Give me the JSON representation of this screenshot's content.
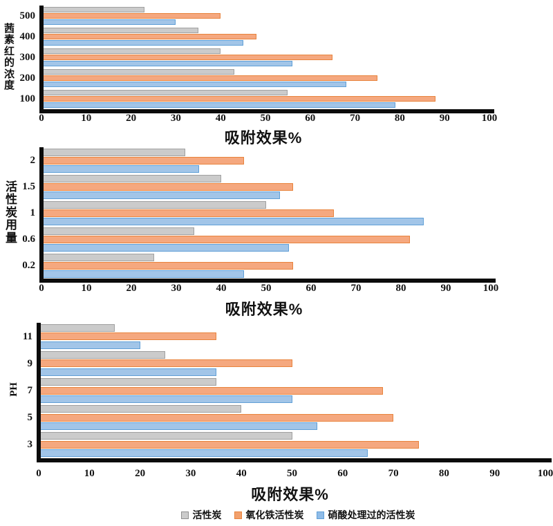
{
  "figure": {
    "background": "#ffffff",
    "axis_color": "#0b0b0b"
  },
  "chart_data": [
    {
      "type": "bar",
      "orientation": "horizontal",
      "y_axis_title": "茜素红的浓度",
      "xlabel": "吸附效果%",
      "xlim": [
        0,
        100
      ],
      "grid": false,
      "x_ticks": [
        "0",
        "10",
        "20",
        "30",
        "40",
        "50",
        "60",
        "70",
        "80",
        "90",
        "100"
      ],
      "categories": [
        "500",
        "400",
        "300",
        "200",
        "100"
      ],
      "series": [
        {
          "name": "活性炭",
          "fill": "#cbcbcb",
          "border": "#a0a0a0",
          "values": [
            23,
            35,
            40,
            43,
            55
          ]
        },
        {
          "name": "氧化铁活性炭",
          "fill": "#f5a87f",
          "border": "#e8833c",
          "values": [
            40,
            48,
            65,
            75,
            88
          ]
        },
        {
          "name": "硝酸处理过的活性炭",
          "fill": "#a2c5e8",
          "border": "#609fd6",
          "values": [
            30,
            45,
            56,
            68,
            79
          ]
        }
      ]
    },
    {
      "type": "bar",
      "orientation": "horizontal",
      "y_axis_title": "活性炭用量",
      "xlabel": "吸附效果%",
      "xlim": [
        0,
        100
      ],
      "grid": false,
      "x_ticks": [
        "0",
        "10",
        "20",
        "30",
        "40",
        "50",
        "60",
        "70",
        "80",
        "90",
        "100"
      ],
      "categories": [
        "2",
        "1.5",
        "1",
        "0.6",
        "0.2"
      ],
      "series": [
        {
          "name": "活性炭",
          "fill": "#cbcbcb",
          "border": "#a0a0a0",
          "values": [
            32,
            40,
            50,
            34,
            25
          ]
        },
        {
          "name": "氧化铁活性炭",
          "fill": "#f5a87f",
          "border": "#e8833c",
          "values": [
            45,
            56,
            65,
            82,
            56
          ]
        },
        {
          "name": "硝酸处理过的活性炭",
          "fill": "#a2c5e8",
          "border": "#609fd6",
          "values": [
            35,
            53,
            85,
            55,
            45
          ]
        }
      ]
    },
    {
      "type": "bar",
      "orientation": "horizontal",
      "y_axis_title": "PH",
      "xlabel": "吸附效果%",
      "xlim": [
        0,
        100
      ],
      "grid": false,
      "x_ticks": [
        "0",
        "10",
        "20",
        "30",
        "40",
        "50",
        "60",
        "70",
        "80",
        "90",
        "100"
      ],
      "categories": [
        "11",
        "9",
        "7",
        "5",
        "3"
      ],
      "series": [
        {
          "name": "活性炭",
          "fill": "#cbcbcb",
          "border": "#a0a0a0",
          "values": [
            15,
            25,
            35,
            40,
            50
          ]
        },
        {
          "name": "氧化铁活性炭",
          "fill": "#f5a87f",
          "border": "#e8833c",
          "values": [
            35,
            50,
            68,
            70,
            75
          ]
        },
        {
          "name": "硝酸处理过的活性炭",
          "fill": "#a2c5e8",
          "border": "#609fd6",
          "values": [
            20,
            35,
            50,
            55,
            65
          ]
        }
      ]
    }
  ],
  "legend": {
    "items": [
      {
        "label": "活性炭",
        "fill": "#cbcbcb",
        "border": "#8f8f8f"
      },
      {
        "label": "氧化铁活性炭",
        "fill": "#f2a06c",
        "border": "#e8833c"
      },
      {
        "label": "硝酸处理过的活性炭",
        "fill": "#8fbce8",
        "border": "#609fd6"
      }
    ]
  }
}
